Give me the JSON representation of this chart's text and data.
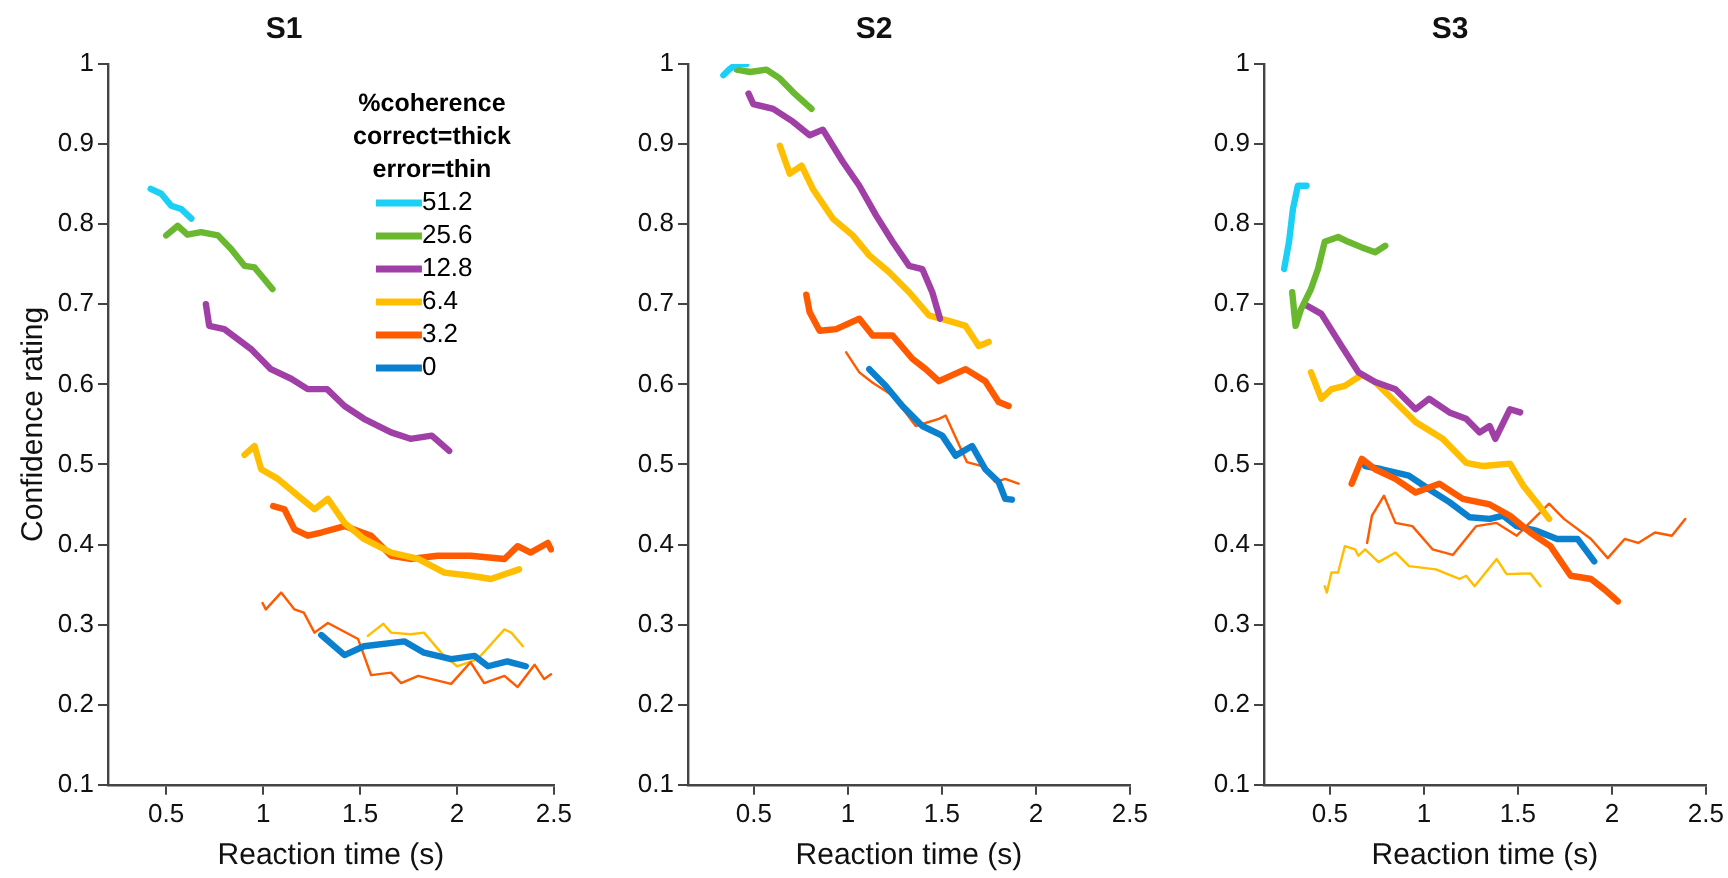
{
  "chart_data": [
    {
      "type": "line",
      "title": "S1",
      "xlabel": "Reaction time (s)",
      "ylabel": "Confidence rating",
      "legend_title": "%coherence\ncorrect=thick\nerror=thin",
      "legend": "top right",
      "xlim": [
        0.2,
        2.5
      ],
      "xticks": [
        0.5,
        1,
        1.5,
        2,
        2.5
      ],
      "ylim": [
        0.1,
        1
      ],
      "yticks": [
        0.1,
        0.2,
        0.3,
        0.4,
        0.5,
        0.6,
        0.7,
        0.8,
        0.9,
        1
      ],
      "series": [
        {
          "name": "51.2",
          "color": "#1ccff5",
          "x": [
            0.42,
            0.475,
            0.526,
            0.578,
            0.63
          ],
          "values": [
            0.844,
            0.838,
            0.823,
            0.819,
            0.807
          ]
        },
        {
          "name": "25.6",
          "color": "#6ab82f",
          "x": [
            0.5,
            0.56,
            0.61,
            0.68,
            0.767,
            0.835,
            0.904,
            0.956,
            1.048
          ],
          "values": [
            0.786,
            0.798,
            0.787,
            0.79,
            0.786,
            0.769,
            0.748,
            0.746,
            0.719
          ]
        },
        {
          "name": "12.8",
          "color": "#a03fa6",
          "x": [
            0.705,
            0.722,
            0.8,
            0.938,
            1.04,
            1.145,
            1.23,
            1.33,
            1.42,
            1.52,
            1.66,
            1.76,
            1.87,
            1.96
          ],
          "values": [
            0.7,
            0.673,
            0.669,
            0.644,
            0.619,
            0.607,
            0.594,
            0.594,
            0.573,
            0.557,
            0.54,
            0.532,
            0.536,
            0.517
          ]
        },
        {
          "name": "6.4",
          "color": "#ffbf00",
          "x": [
            0.904,
            0.956,
            0.99,
            1.076,
            1.18,
            1.265,
            1.334,
            1.42,
            1.52,
            1.66,
            1.8,
            1.935,
            2.07,
            2.175,
            2.32
          ],
          "values": [
            0.512,
            0.523,
            0.494,
            0.482,
            0.461,
            0.444,
            0.457,
            0.427,
            0.407,
            0.39,
            0.382,
            0.365,
            0.361,
            0.357,
            0.369
          ]
        },
        {
          "name": "3.2",
          "color": "#ff5a00",
          "x": [
            1.052,
            1.11,
            1.162,
            1.23,
            1.3,
            1.42,
            1.557,
            1.66,
            1.76,
            1.9,
            2.07,
            2.245,
            2.313,
            2.38,
            2.468,
            2.485
          ],
          "values": [
            0.448,
            0.444,
            0.419,
            0.411,
            0.415,
            0.423,
            0.411,
            0.386,
            0.382,
            0.386,
            0.386,
            0.382,
            0.398,
            0.39,
            0.402,
            0.394
          ]
        },
        {
          "name": "0",
          "color": "#0a80cf",
          "x": [
            1.3,
            1.42,
            1.52,
            1.73,
            1.83,
            1.97,
            2.09,
            2.16,
            2.26,
            2.355
          ],
          "values": [
            0.287,
            0.262,
            0.273,
            0.279,
            0.265,
            0.257,
            0.261,
            0.248,
            0.254,
            0.248
          ]
        },
        {
          "color": "#ff5a00",
          "x": [
            0.997,
            1.014,
            1.093,
            1.162,
            1.21,
            1.265,
            1.334,
            1.49,
            1.557,
            1.66,
            1.712,
            1.8,
            1.97,
            2.07,
            2.14,
            2.245,
            2.313,
            2.4,
            2.45,
            2.485
          ],
          "values": [
            0.327,
            0.319,
            0.34,
            0.319,
            0.315,
            0.29,
            0.302,
            0.282,
            0.237,
            0.24,
            0.227,
            0.236,
            0.226,
            0.253,
            0.227,
            0.236,
            0.222,
            0.25,
            0.232,
            0.238
          ]
        },
        {
          "color": "#ffbf00",
          "x": [
            1.54,
            1.62,
            1.66,
            1.76,
            1.83,
            1.918,
            2.0,
            2.107,
            2.245,
            2.28,
            2.34
          ],
          "values": [
            0.286,
            0.301,
            0.29,
            0.288,
            0.29,
            0.265,
            0.248,
            0.257,
            0.294,
            0.29,
            0.273
          ]
        }
      ]
    },
    {
      "type": "line",
      "title": "S2",
      "xlabel": "Reaction time (s)",
      "xlim": [
        0.15,
        2.5
      ],
      "xticks": [
        0.5,
        1,
        1.5,
        2,
        2.5
      ],
      "ylim": [
        0.1,
        1
      ],
      "yticks": [
        0.1,
        0.2,
        0.3,
        0.4,
        0.5,
        0.6,
        0.7,
        0.8,
        0.9,
        1
      ],
      "series": [
        {
          "name": "51.2",
          "color": "#1ccff5",
          "x": [
            0.338,
            0.373,
            0.409,
            0.46
          ],
          "values": [
            0.986,
            0.994,
            1.0,
            1.0
          ]
        },
        {
          "name": "25.6",
          "color": "#6ab82f",
          "x": [
            0.409,
            0.48,
            0.567,
            0.638,
            0.708,
            0.807
          ],
          "values": [
            0.993,
            0.99,
            0.993,
            0.982,
            0.965,
            0.944
          ]
        },
        {
          "name": "12.8",
          "color": "#a03fa6",
          "x": [
            0.472,
            0.497,
            0.603,
            0.708,
            0.797,
            0.867,
            0.973,
            1.061,
            1.15,
            1.238,
            1.326,
            1.396,
            1.449,
            1.49
          ],
          "values": [
            0.963,
            0.95,
            0.944,
            0.928,
            0.911,
            0.918,
            0.878,
            0.848,
            0.811,
            0.778,
            0.748,
            0.744,
            0.715,
            0.682
          ]
        },
        {
          "name": "6.4",
          "color": "#ffbf00",
          "x": [
            0.638,
            0.691,
            0.754,
            0.814,
            0.92,
            1.026,
            1.114,
            1.22,
            1.326,
            1.432,
            1.555,
            1.626,
            1.696,
            1.749
          ],
          "values": [
            0.898,
            0.863,
            0.873,
            0.844,
            0.807,
            0.786,
            0.761,
            0.74,
            0.715,
            0.686,
            0.678,
            0.673,
            0.648,
            0.653
          ]
        },
        {
          "name": "3.2",
          "color": "#ff5a00",
          "x": [
            0.779,
            0.797,
            0.85,
            0.938,
            1.061,
            1.132,
            1.238,
            1.343,
            1.414,
            1.484,
            1.626,
            1.731,
            1.802,
            1.855
          ],
          "values": [
            0.712,
            0.69,
            0.667,
            0.669,
            0.682,
            0.661,
            0.661,
            0.632,
            0.619,
            0.604,
            0.619,
            0.604,
            0.578,
            0.573
          ]
        },
        {
          "name": "0",
          "color": "#0a80cf",
          "x": [
            1.114,
            1.202,
            1.29,
            1.396,
            1.502,
            1.573,
            1.661,
            1.731,
            1.802,
            1.837,
            1.872
          ],
          "values": [
            0.619,
            0.598,
            0.573,
            0.548,
            0.536,
            0.511,
            0.523,
            0.494,
            0.478,
            0.457,
            0.456
          ]
        },
        {
          "color": "#ff5a00",
          "x": [
            0.991,
            1.061,
            1.132,
            1.238,
            1.361,
            1.484,
            1.52,
            1.633,
            1.714,
            1.784,
            1.837,
            1.908
          ],
          "values": [
            0.64,
            0.615,
            0.602,
            0.586,
            0.548,
            0.557,
            0.561,
            0.503,
            0.498,
            0.478,
            0.482,
            0.476
          ]
        }
      ]
    },
    {
      "type": "line",
      "title": "S3",
      "xlabel": "Reaction time (s)",
      "xlim": [
        0.15,
        2.5
      ],
      "xticks": [
        0.5,
        1,
        1.5,
        2,
        2.5
      ],
      "ylim": [
        0.1,
        1
      ],
      "yticks": [
        0.1,
        0.2,
        0.3,
        0.4,
        0.5,
        0.6,
        0.7,
        0.8,
        0.9,
        1
      ],
      "series": [
        {
          "name": "51.2",
          "color": "#1ccff5",
          "x": [
            0.257,
            0.283,
            0.304,
            0.33,
            0.376
          ],
          "values": [
            0.744,
            0.778,
            0.819,
            0.848,
            0.848
          ]
        },
        {
          "name": "25.6",
          "color": "#6ab82f",
          "x": [
            0.3,
            0.318,
            0.347,
            0.4,
            0.437,
            0.473,
            0.544,
            0.598,
            0.67,
            0.741,
            0.795
          ],
          "values": [
            0.715,
            0.673,
            0.694,
            0.719,
            0.744,
            0.778,
            0.784,
            0.778,
            0.771,
            0.765,
            0.773
          ]
        },
        {
          "name": "12.8",
          "color": "#a03fa6",
          "x": [
            0.365,
            0.455,
            0.562,
            0.652,
            0.741,
            0.849,
            0.956,
            1.028,
            1.136,
            1.225,
            1.297,
            1.35,
            1.38,
            1.458,
            1.512
          ],
          "values": [
            0.7,
            0.688,
            0.648,
            0.615,
            0.603,
            0.594,
            0.569,
            0.582,
            0.565,
            0.557,
            0.54,
            0.548,
            0.532,
            0.569,
            0.565
          ]
        },
        {
          "name": "6.4",
          "color": "#ffbf00",
          "x": [
            0.4,
            0.455,
            0.509,
            0.58,
            0.67,
            0.741,
            0.849,
            0.956,
            1.1,
            1.225,
            1.315,
            1.458,
            1.53,
            1.602,
            1.666
          ],
          "values": [
            0.615,
            0.582,
            0.594,
            0.598,
            0.612,
            0.603,
            0.578,
            0.553,
            0.532,
            0.502,
            0.498,
            0.501,
            0.473,
            0.452,
            0.432
          ]
        },
        {
          "name": "3.2",
          "color": "#ff5a00",
          "x": [
            0.616,
            0.67,
            0.741,
            0.849,
            0.956,
            1.082,
            1.207,
            1.35,
            1.458,
            1.566,
            1.673,
            1.781,
            1.889,
            1.96,
            2.032
          ],
          "values": [
            0.476,
            0.507,
            0.494,
            0.482,
            0.465,
            0.476,
            0.457,
            0.45,
            0.436,
            0.415,
            0.398,
            0.361,
            0.357,
            0.344,
            0.329
          ]
        },
        {
          "name": "0",
          "color": "#0a80cf",
          "x": [
            0.688,
            0.777,
            0.92,
            1.028,
            1.136,
            1.243,
            1.35,
            1.422,
            1.494,
            1.602,
            1.709,
            1.817,
            1.906
          ],
          "values": [
            0.498,
            0.494,
            0.486,
            0.469,
            0.453,
            0.434,
            0.432,
            0.436,
            0.423,
            0.417,
            0.407,
            0.407,
            0.379
          ]
        },
        {
          "color": "#ff5a00",
          "x": [
            0.698,
            0.724,
            0.788,
            0.849,
            0.939,
            1.046,
            1.154,
            1.279,
            1.387,
            1.494,
            1.666,
            1.745,
            1.889,
            1.978,
            2.068,
            2.14,
            2.229,
            2.319,
            2.39
          ],
          "values": [
            0.402,
            0.436,
            0.461,
            0.427,
            0.423,
            0.394,
            0.387,
            0.423,
            0.427,
            0.411,
            0.451,
            0.432,
            0.407,
            0.383,
            0.407,
            0.402,
            0.415,
            0.411,
            0.432
          ]
        },
        {
          "color": "#ffbf00",
          "x": [
            0.473,
            0.484,
            0.509,
            0.544,
            0.58,
            0.634,
            0.652,
            0.688,
            0.759,
            0.849,
            0.921,
            1.064,
            1.189,
            1.225,
            1.27,
            1.315,
            1.387,
            1.44,
            1.566,
            1.62
          ],
          "values": [
            0.348,
            0.34,
            0.365,
            0.365,
            0.398,
            0.394,
            0.386,
            0.394,
            0.378,
            0.39,
            0.373,
            0.369,
            0.357,
            0.361,
            0.348,
            0.361,
            0.382,
            0.363,
            0.364,
            0.348
          ]
        }
      ]
    }
  ]
}
